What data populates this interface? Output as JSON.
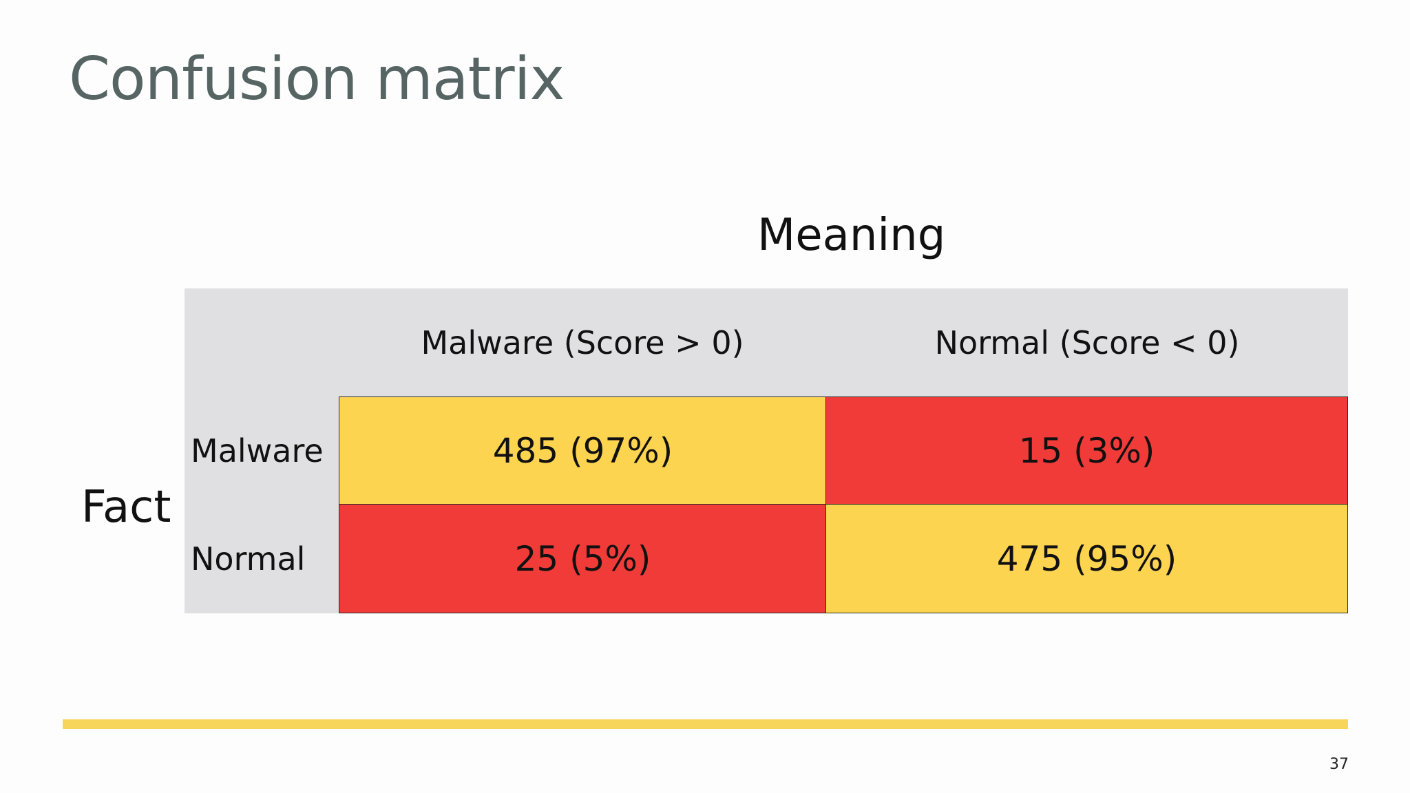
{
  "slide": {
    "title": "Confusion matrix",
    "page_number": "37"
  },
  "matrix": {
    "column_axis_label": "Meaning",
    "row_axis_label": "Fact",
    "column_headers": [
      "Malware (Score > 0)",
      "Normal (Score < 0)"
    ],
    "row_headers": [
      "Malware",
      "Normal"
    ],
    "cells": [
      [
        "485 (97%)",
        "15 (3%)"
      ],
      [
        "25 (5%)",
        "475 (95%)"
      ]
    ]
  },
  "colors": {
    "title": "#566464",
    "header_background": "#e0dfe2",
    "correct_cell": "#fcd44f",
    "error_cell": "#f03b38",
    "accent_bar": "#f6d55a"
  }
}
